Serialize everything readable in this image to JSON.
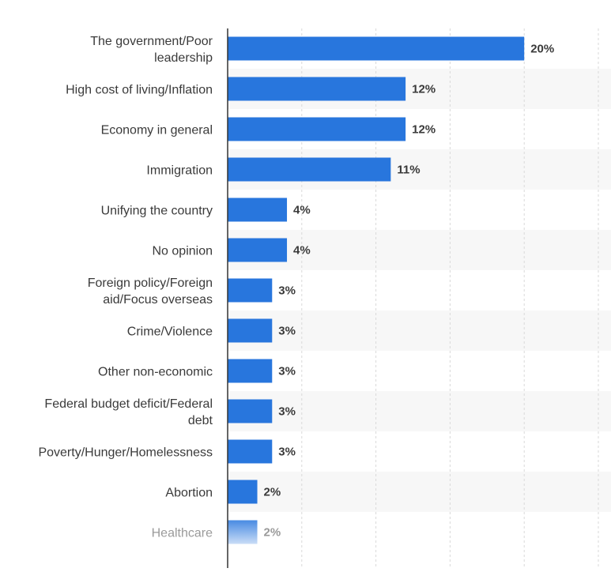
{
  "chart_data": {
    "type": "bar",
    "orientation": "horizontal",
    "title": "",
    "xlabel": "",
    "ylabel": "",
    "xlim": [
      0,
      25
    ],
    "grid": true,
    "value_suffix": "%",
    "bar_color": "#2876dd",
    "categories": [
      "The government/Poor leadership",
      "High cost of living/Inflation",
      "Economy in general",
      "Immigration",
      "Unifying the country",
      "No opinion",
      "Foreign policy/Foreign aid/Focus overseas",
      "Crime/Violence",
      "Other non-economic",
      "Federal budget deficit/Federal debt",
      "Poverty/Hunger/Homelessness",
      "Abortion",
      "Healthcare"
    ],
    "label_lines": [
      [
        "The government/Poor",
        "leadership"
      ],
      [
        "High cost of living/Inflation"
      ],
      [
        "Economy in general"
      ],
      [
        "Immigration"
      ],
      [
        "Unifying the country"
      ],
      [
        "No opinion"
      ],
      [
        "Foreign policy/Foreign",
        "aid/Focus overseas"
      ],
      [
        "Crime/Violence"
      ],
      [
        "Other non-economic"
      ],
      [
        "Federal budget deficit/Federal",
        "debt"
      ],
      [
        "Poverty/Hunger/Homelessness"
      ],
      [
        "Abortion"
      ],
      [
        "Healthcare"
      ]
    ],
    "values": [
      20,
      12,
      12,
      11,
      4,
      4,
      3,
      3,
      3,
      3,
      3,
      2,
      2
    ],
    "value_labels": [
      "20%",
      "12%",
      "12%",
      "11%",
      "4%",
      "4%",
      "3%",
      "3%",
      "3%",
      "3%",
      "3%",
      "2%",
      "2%"
    ]
  }
}
